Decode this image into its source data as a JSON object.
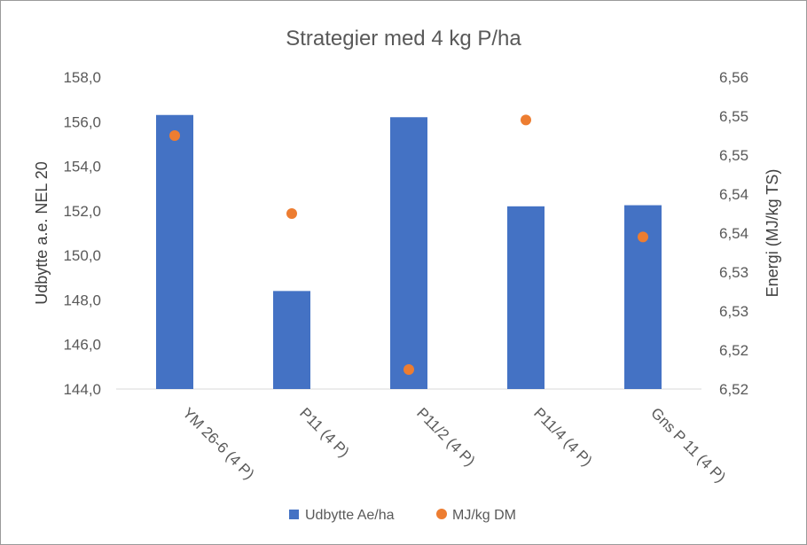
{
  "chart_data": {
    "type": "bar",
    "title": "Strategier med 4 kg P/ha",
    "categories": [
      "YM 26-6 (4 P)",
      "P11 (4 P)",
      "P11/2 (4 P)",
      "P11/4 (4 P)",
      "Gns P 11 (4 P)"
    ],
    "series": [
      {
        "name": "Udbytte Ae/ha",
        "type": "bar",
        "axis": "left",
        "color": "#4472C4",
        "values": [
          156.3,
          148.4,
          156.2,
          152.2,
          152.25
        ]
      },
      {
        "name": "MJ/kg DM",
        "type": "scatter",
        "axis": "right",
        "color": "#ED7D31",
        "values": [
          6.5525,
          6.5425,
          6.5225,
          6.5545,
          6.5395
        ]
      }
    ],
    "y_left": {
      "label": "Udbytte a.e. NEL 20",
      "ylim": [
        144,
        158
      ],
      "ticks": [
        "144,0",
        "146,0",
        "148,0",
        "150,0",
        "152,0",
        "154,0",
        "156,0",
        "158,0"
      ]
    },
    "y_right": {
      "label": "Energi (MJ/kg TS)",
      "ylim": [
        6.52,
        6.56
      ],
      "ticks": [
        "6,52",
        "6,52",
        "6,53",
        "6,53",
        "6,54",
        "6,54",
        "6,55",
        "6,55",
        "6,56"
      ]
    },
    "gridlines": false,
    "legend": "bottom"
  }
}
